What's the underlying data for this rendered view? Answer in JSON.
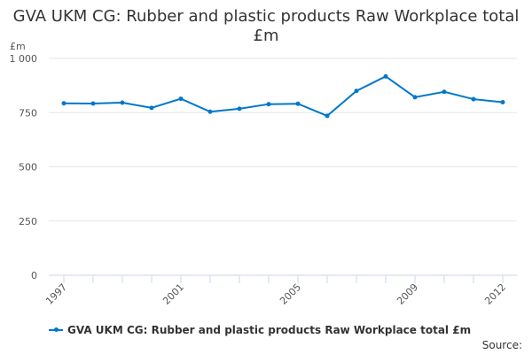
{
  "chart_data": {
    "type": "line",
    "title": "GVA UKM CG: Rubber and plastic products Raw Workplace total £m",
    "ylabel": "£m",
    "xlabel": "",
    "x": [
      1997,
      1998,
      1999,
      2000,
      2001,
      2002,
      2003,
      2004,
      2005,
      2006,
      2007,
      2008,
      2009,
      2010,
      2011,
      2012
    ],
    "series": [
      {
        "name": "GVA UKM CG: Rubber and plastic products Raw Workplace total £m",
        "values": [
          793,
          792,
          796,
          772,
          814,
          754,
          768,
          789,
          791,
          735,
          850,
          917,
          821,
          846,
          812,
          798
        ],
        "color": "#0077cc"
      }
    ],
    "ylim": [
      0,
      1000
    ],
    "yticks": [
      0,
      250,
      500,
      750,
      1000
    ],
    "ytick_labels": [
      "0",
      "250",
      "500",
      "750",
      "1 000"
    ],
    "xtick_labels": [
      "1997",
      "2001",
      "2005",
      "2009",
      "2012"
    ],
    "grid": true,
    "legend": "bottom"
  },
  "source_label": "Source:"
}
